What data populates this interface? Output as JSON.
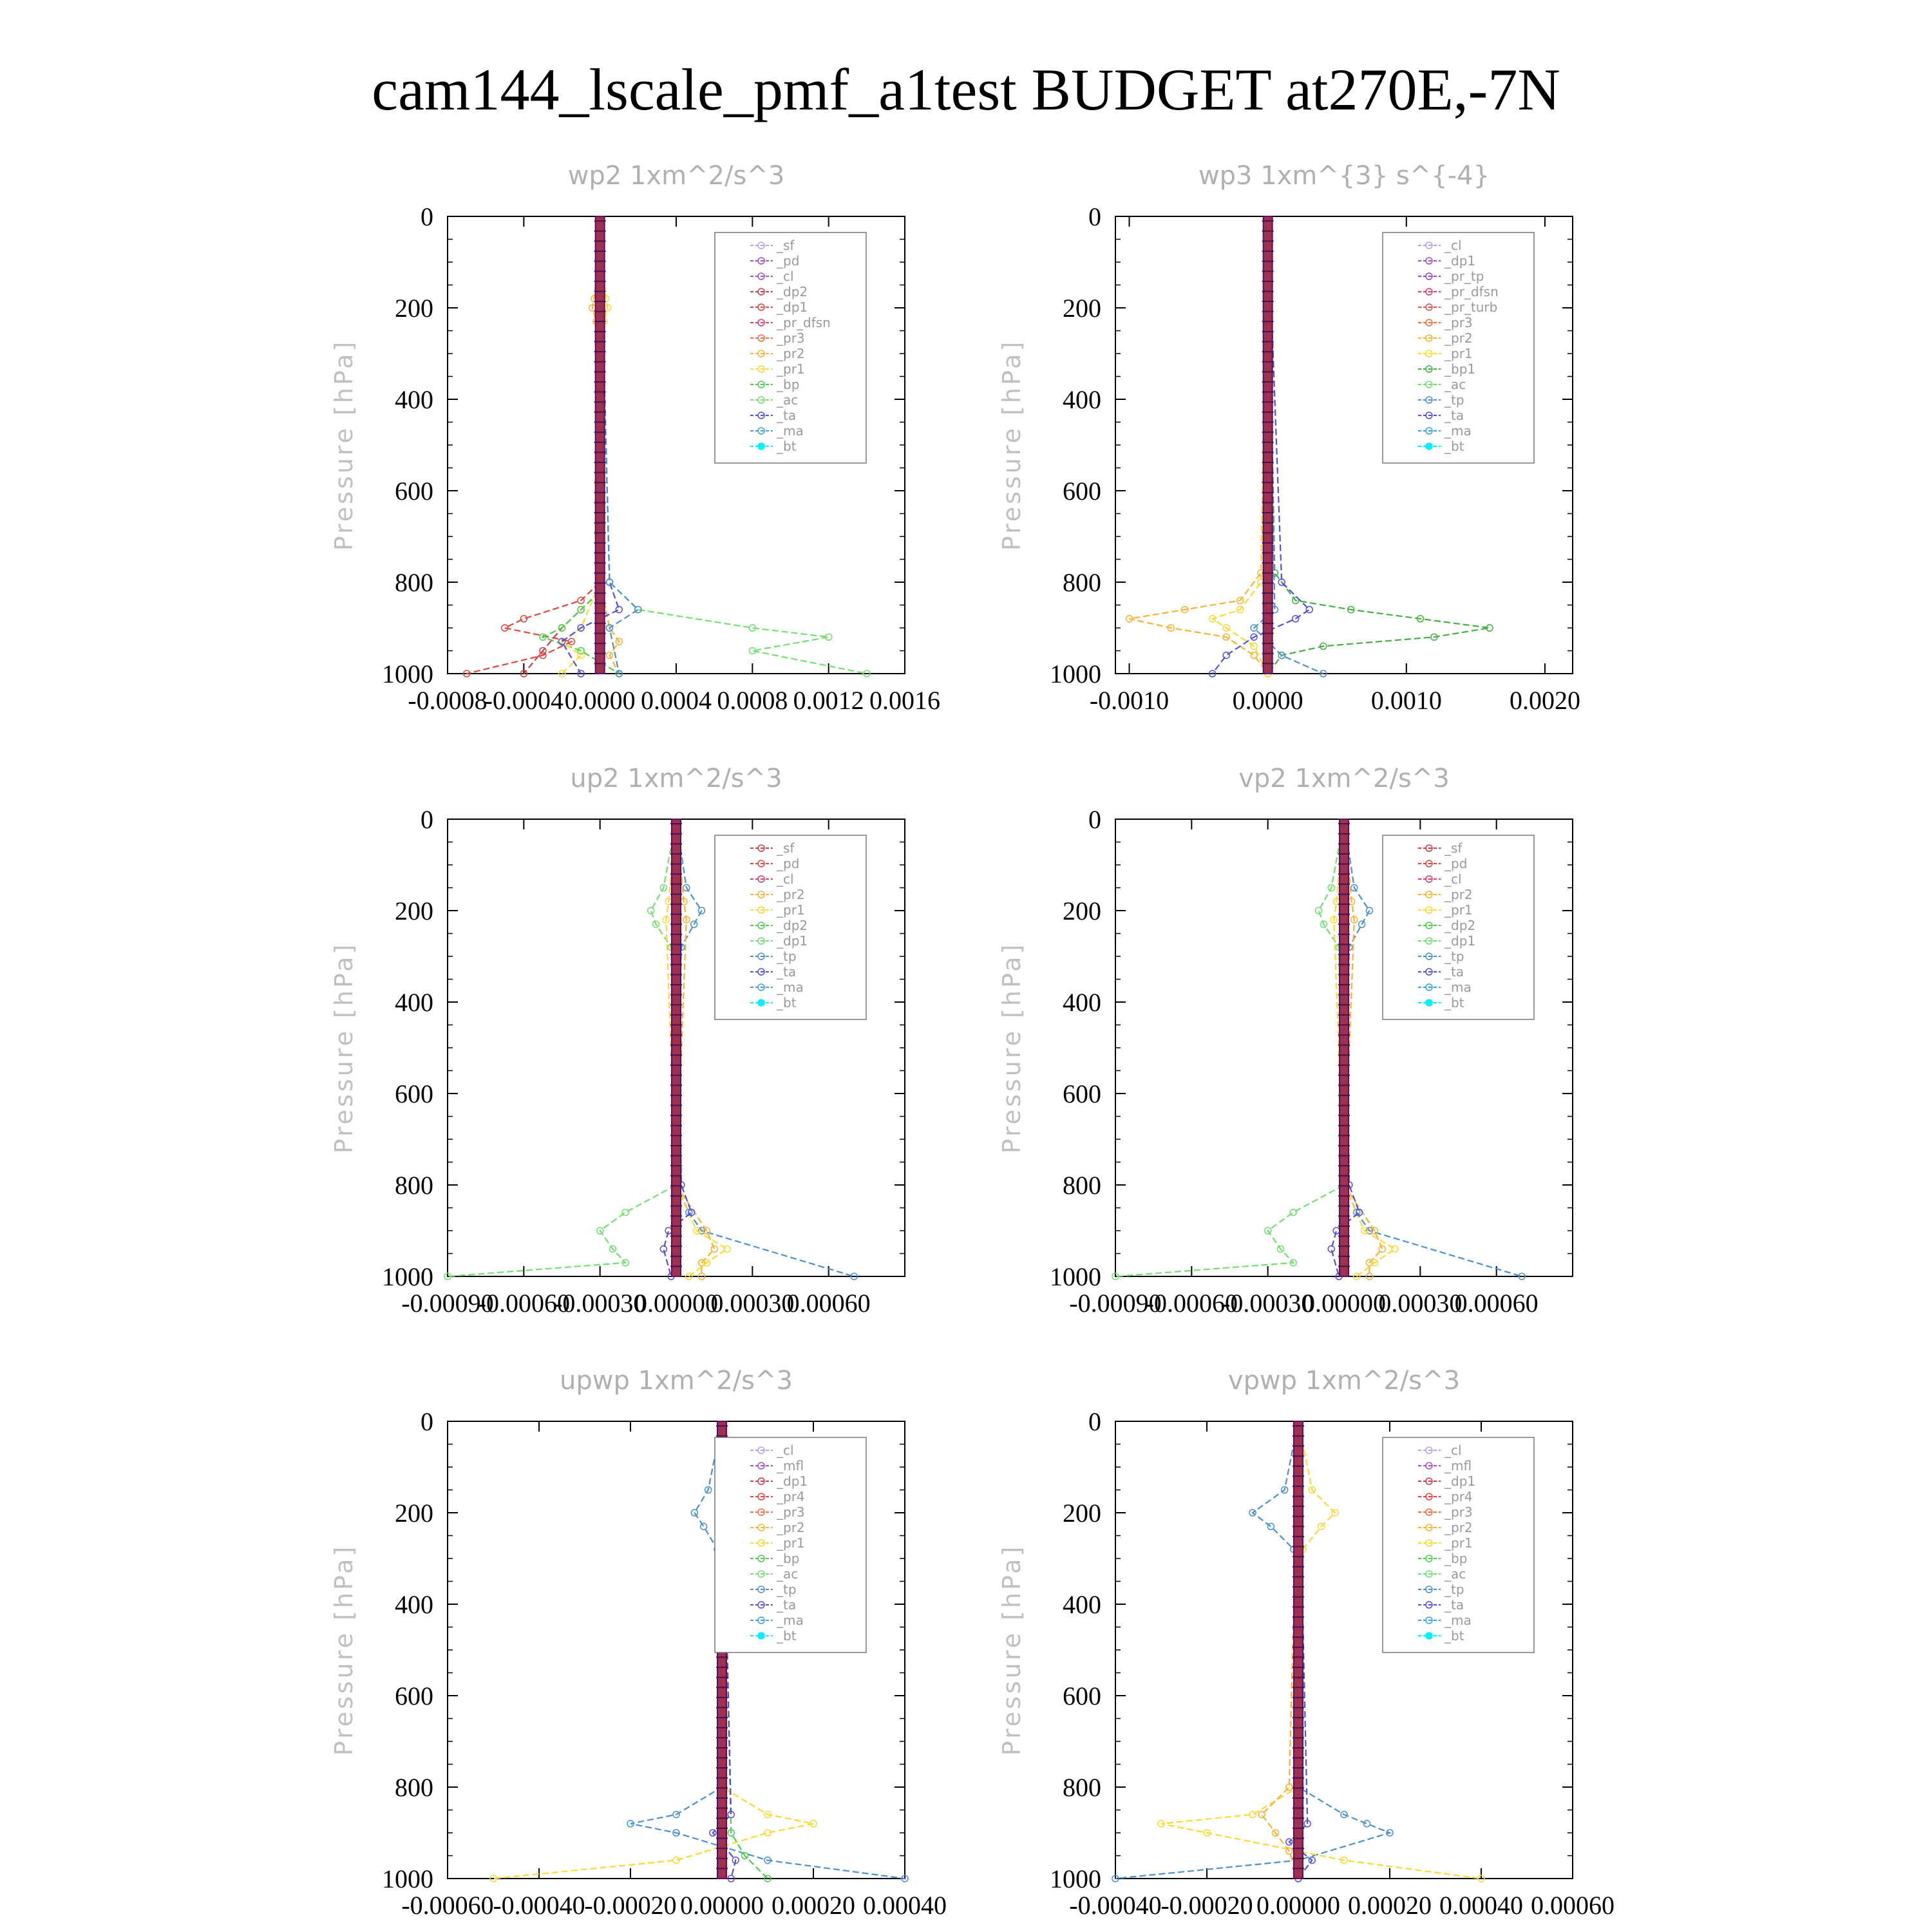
{
  "page": {
    "title": "cam144_lscale_pmf_a1test  BUDGET at270E,-7N"
  },
  "colors": {
    "sf": "#b9a0e6",
    "pd": "#9a4fc2",
    "cl": "#b04ad0",
    "mfl": "#b04ad0",
    "dp2": "#d43a4a",
    "dp1": "#e0453a",
    "pr_tp": "#8a4ad0",
    "pr_dfsn": "#e03a6a",
    "pr_turb": "#e05050",
    "pr_dfsn_r": "#ff5050",
    "pr4": "#ff3a3a",
    "pr3": "#ff6a3a",
    "pr2": "#ffb030",
    "pr1": "#ffd830",
    "bp": "#4ad04a",
    "bp1": "#40b040",
    "ac": "#70e070",
    "tp": "#4a90d0",
    "ta": "#5050e0",
    "ma": "#3aa0e0",
    "bt": "#00f0ff",
    "bar": "#b0204a",
    "bar_edge": "#5a1060",
    "bar_fill": "#a03050"
  },
  "chart_data": [
    {
      "type": "line",
      "title": "wp2   1xm^2/s^3",
      "ylabel": "Pressure [hPa]",
      "ylim": [
        1000,
        0
      ],
      "xlim": [
        -0.0008,
        0.0016
      ],
      "xtick_labels": [
        "-0.0008",
        "-0.0004",
        "0.0000",
        "0.0004",
        "0.0008",
        "0.0012",
        "0.0016"
      ],
      "xticks": [
        -0.0008,
        -0.0004,
        0,
        0.0004,
        0.0008,
        0.0012,
        0.0016
      ],
      "ytick_labels": [
        "0",
        "200",
        "400",
        "600",
        "800",
        "1000"
      ],
      "legend": [
        "_sf",
        "_pd",
        "_cl",
        "_dp2",
        "_dp1",
        "_pr_dfsn",
        "_pr3",
        "_pr2",
        "_pr1",
        "_bp",
        "_ac",
        "_ta",
        "_ma",
        "_bt"
      ],
      "legend_colors": [
        "sf",
        "pd",
        "cl",
        "dp2",
        "dp1",
        "pr_dfsn",
        "pr3",
        "pr2",
        "pr1",
        "bp",
        "ac",
        "ta",
        "ma",
        "bt"
      ],
      "legend_position": "top-right",
      "series": [
        {
          "name": "_dp1",
          "color": "dp1",
          "p": [
            0,
            800,
            840,
            880,
            900,
            930,
            960,
            1000
          ],
          "x": [
            0,
            0,
            -0.0001,
            -0.0004,
            -0.0005,
            -0.00015,
            -0.0003,
            -0.0007
          ]
        },
        {
          "name": "_dp2",
          "color": "dp2",
          "p": [
            0,
            820,
            860,
            900,
            950,
            1000
          ],
          "x": [
            0,
            0,
            -0.0001,
            -0.0002,
            -0.0003,
            -0.0004
          ]
        },
        {
          "name": "_bp",
          "color": "bp",
          "p": [
            0,
            820,
            860,
            900,
            920,
            950,
            1000
          ],
          "x": [
            0,
            0,
            -0.0001,
            -0.0002,
            -0.0003,
            -0.0001,
            0.0001
          ]
        },
        {
          "name": "_ac",
          "color": "ac",
          "p": [
            0,
            800,
            860,
            900,
            920,
            950,
            1000
          ],
          "x": [
            0,
            5e-05,
            0.0002,
            0.0008,
            0.0012,
            0.0008,
            0.0014
          ]
        },
        {
          "name": "_pr2",
          "color": "pr2",
          "p": [
            0,
            180,
            200,
            230,
            800,
            900,
            930,
            960,
            1000
          ],
          "x": [
            0,
            -3e-05,
            -4e-05,
            -2e-05,
            0,
            5e-05,
            0.0001,
            5e-05,
            0.0001
          ]
        },
        {
          "name": "_pr1",
          "color": "pr1",
          "p": [
            0,
            180,
            200,
            230,
            800,
            900,
            930,
            960,
            1000
          ],
          "x": [
            0,
            3e-05,
            4e-05,
            2e-05,
            0,
            -0.0001,
            -0.0002,
            -0.0001,
            -0.0002
          ]
        },
        {
          "name": "_ta",
          "color": "ta",
          "p": [
            0,
            800,
            860,
            900,
            930,
            1000
          ],
          "x": [
            0,
            5e-05,
            0.0001,
            -0.0001,
            -0.0002,
            -0.0001
          ]
        },
        {
          "name": "_tp",
          "color": "tp",
          "p": [
            0,
            800,
            860,
            900,
            1000
          ],
          "x": [
            0,
            5e-05,
            0.0002,
            5e-05,
            0.0001
          ]
        }
      ]
    },
    {
      "type": "line",
      "title": "wp3   1xm^{3} s^{-4}",
      "ylabel": "Pressure [hPa]",
      "ylim": [
        1000,
        0
      ],
      "xlim": [
        -0.0011,
        0.0022
      ],
      "xtick_labels": [
        "-0.0010",
        "0.0000",
        "0.0010",
        "0.0020"
      ],
      "xticks": [
        -0.001,
        0,
        0.001,
        0.002
      ],
      "ytick_labels": [
        "0",
        "200",
        "400",
        "600",
        "800",
        "1000"
      ],
      "legend": [
        "_cl",
        "_dp1",
        "_pr_tp",
        "_pr_dfsn",
        "_pr_turb",
        "_pr3",
        "_pr2",
        "_pr1",
        "_bp1",
        "_ac",
        "_tp",
        "_ta",
        "_ma",
        "_bt"
      ],
      "legend_colors": [
        "sf",
        "pd",
        "pr_tp",
        "pr_dfsn",
        "pr_turb",
        "pr3",
        "pr2",
        "pr1",
        "bp1",
        "ac",
        "tp",
        "ta",
        "ma",
        "bt"
      ],
      "legend_position": "top-right",
      "series": [
        {
          "name": "_bp1",
          "color": "bp1",
          "p": [
            0,
            780,
            840,
            860,
            880,
            900,
            920,
            940,
            960,
            1000
          ],
          "x": [
            0,
            5e-05,
            0.0002,
            0.0006,
            0.0011,
            0.0016,
            0.0012,
            0.0004,
            0.0001,
            0
          ]
        },
        {
          "name": "_pr2",
          "color": "pr2",
          "p": [
            0,
            780,
            840,
            860,
            880,
            900,
            920,
            960,
            1000
          ],
          "x": [
            0,
            -5e-05,
            -0.0002,
            -0.0006,
            -0.001,
            -0.0007,
            -0.0003,
            -0.0001,
            0
          ]
        },
        {
          "name": "_pr1",
          "color": "pr1",
          "p": [
            0,
            800,
            860,
            880,
            900,
            940,
            1000
          ],
          "x": [
            0,
            -5e-05,
            -0.0002,
            -0.0004,
            -0.0003,
            -0.0001,
            0
          ]
        },
        {
          "name": "_ta",
          "color": "ta",
          "p": [
            0,
            800,
            860,
            880,
            920,
            960,
            1000
          ],
          "x": [
            0,
            0.0001,
            0.0003,
            0.0002,
            -0.0001,
            -0.0003,
            -0.0004
          ]
        },
        {
          "name": "_tp",
          "color": "tp",
          "p": [
            0,
            860,
            900,
            960,
            1000
          ],
          "x": [
            0,
            5e-05,
            -0.0001,
            0.0001,
            0.0004
          ]
        }
      ]
    },
    {
      "type": "line",
      "title": "up2   1xm^2/s^3",
      "ylabel": "Pressure [hPa]",
      "ylim": [
        1000,
        0
      ],
      "xlim": [
        -0.0009,
        0.0009
      ],
      "xtick_labels": [
        "-0.00090",
        "-0.00060",
        "-0.00030",
        "0.00000",
        "0.00030",
        "0.00060"
      ],
      "xticks": [
        -0.0009,
        -0.0006,
        -0.0003,
        0,
        0.0003,
        0.0006
      ],
      "ytick_labels": [
        "0",
        "200",
        "400",
        "600",
        "800",
        "1000"
      ],
      "legend": [
        "_sf",
        "_pd",
        "_cl",
        "_pr2",
        "_pr1",
        "_dp2",
        "_dp1",
        "_tp",
        "_ta",
        "_ma",
        "_bt"
      ],
      "legend_colors": [
        "dp2",
        "dp1",
        "pr_dfsn",
        "pr2",
        "pr1",
        "bp",
        "ac",
        "tp",
        "ta",
        "ma",
        "bt"
      ],
      "legend_position": "top-right",
      "series": [
        {
          "name": "_dp1",
          "color": "ac",
          "p": [
            0,
            150,
            200,
            230,
            280,
            800,
            860,
            900,
            940,
            970,
            1000
          ],
          "x": [
            0,
            -5e-05,
            -0.0001,
            -8e-05,
            -2e-05,
            0,
            -0.0002,
            -0.0003,
            -0.00025,
            -0.0002,
            -0.0009
          ]
        },
        {
          "name": "_tp",
          "color": "tp",
          "p": [
            0,
            150,
            200,
            230,
            280,
            800,
            860,
            900,
            1000
          ],
          "x": [
            0,
            4e-05,
            0.0001,
            7e-05,
            2e-05,
            0,
            5e-05,
            0.0001,
            0.0007
          ]
        },
        {
          "name": "_pr2",
          "color": "pr2",
          "p": [
            0,
            180,
            220,
            800,
            900,
            940,
            970,
            1000
          ],
          "x": [
            0,
            3e-05,
            4e-05,
            0,
            0.00012,
            0.00015,
            0.0001,
            0.0001
          ]
        },
        {
          "name": "_pr1",
          "color": "pr1",
          "p": [
            0,
            180,
            220,
            800,
            900,
            940,
            970,
            1000
          ],
          "x": [
            0,
            -3e-05,
            -4e-05,
            0,
            8e-05,
            0.0002,
            0.00012,
            5e-05
          ]
        },
        {
          "name": "_ta",
          "color": "ta",
          "p": [
            0,
            800,
            860,
            900,
            940,
            1000
          ],
          "x": [
            0,
            2e-05,
            6e-05,
            -3e-05,
            -5e-05,
            -2e-05
          ]
        }
      ]
    },
    {
      "type": "line",
      "title": "vp2   1xm^2/s^3",
      "ylabel": "Pressure [hPa]",
      "ylim": [
        1000,
        0
      ],
      "xlim": [
        -0.0009,
        0.0009
      ],
      "xtick_labels": [
        "-0.00090",
        "-0.00060",
        "-0.00030",
        "0.00000",
        "0.00030",
        "0.00060"
      ],
      "xticks": [
        -0.0009,
        -0.0006,
        -0.0003,
        0,
        0.0003,
        0.0006
      ],
      "ytick_labels": [
        "0",
        "200",
        "400",
        "600",
        "800",
        "1000"
      ],
      "legend": [
        "_sf",
        "_pd",
        "_cl",
        "_pr2",
        "_pr1",
        "_dp2",
        "_dp1",
        "_tp",
        "_ta",
        "_ma",
        "_bt"
      ],
      "legend_colors": [
        "dp2",
        "dp1",
        "pr_dfsn",
        "pr2",
        "pr1",
        "bp",
        "ac",
        "tp",
        "ta",
        "ma",
        "bt"
      ],
      "legend_position": "top-right",
      "series": [
        {
          "name": "_dp1",
          "color": "ac",
          "p": [
            0,
            150,
            200,
            230,
            280,
            800,
            860,
            900,
            940,
            970,
            1000
          ],
          "x": [
            0,
            -5e-05,
            -0.0001,
            -8e-05,
            -2e-05,
            0,
            -0.0002,
            -0.0003,
            -0.00025,
            -0.0002,
            -0.0009
          ]
        },
        {
          "name": "_tp",
          "color": "tp",
          "p": [
            0,
            150,
            200,
            230,
            280,
            800,
            860,
            900,
            1000
          ],
          "x": [
            0,
            4e-05,
            0.0001,
            7e-05,
            2e-05,
            0,
            5e-05,
            0.0001,
            0.0007
          ]
        },
        {
          "name": "_pr2",
          "color": "pr2",
          "p": [
            0,
            180,
            220,
            800,
            900,
            940,
            970,
            1000
          ],
          "x": [
            0,
            3e-05,
            4e-05,
            0,
            0.00012,
            0.00015,
            0.0001,
            0.0001
          ]
        },
        {
          "name": "_pr1",
          "color": "pr1",
          "p": [
            0,
            180,
            220,
            800,
            900,
            940,
            970,
            1000
          ],
          "x": [
            0,
            -3e-05,
            -4e-05,
            0,
            8e-05,
            0.0002,
            0.00012,
            5e-05
          ]
        },
        {
          "name": "_ta",
          "color": "ta",
          "p": [
            0,
            800,
            860,
            900,
            940,
            1000
          ],
          "x": [
            0,
            2e-05,
            6e-05,
            -3e-05,
            -5e-05,
            -2e-05
          ]
        }
      ]
    },
    {
      "type": "line",
      "title": "upwp   1xm^2/s^3",
      "ylabel": "Pressure [hPa]",
      "ylim": [
        1000,
        0
      ],
      "xlim": [
        -0.0006,
        0.0004
      ],
      "xtick_labels": [
        "-0.00060",
        "-0.00040",
        "-0.00020",
        "0.00000",
        "0.00020",
        "0.00040"
      ],
      "xticks": [
        -0.0006,
        -0.0004,
        -0.0002,
        0,
        0.0002,
        0.0004
      ],
      "ytick_labels": [
        "0",
        "200",
        "400",
        "600",
        "800",
        "1000"
      ],
      "legend": [
        "_cl",
        "_mfl",
        "_dp1",
        "_pr4",
        "_pr3",
        "_pr2",
        "_pr1",
        "_bp",
        "_ac",
        "_tp",
        "_ta",
        "_ma",
        "_bt"
      ],
      "legend_colors": [
        "sf",
        "mfl",
        "dp2",
        "pr4",
        "pr3",
        "pr2",
        "pr1",
        "bp",
        "ac",
        "tp",
        "ta",
        "ma",
        "bt"
      ],
      "legend_position": "top-right",
      "series": [
        {
          "name": "_tp",
          "color": "tp",
          "p": [
            0,
            150,
            200,
            230,
            280,
            800,
            860,
            880,
            900,
            960,
            1000
          ],
          "x": [
            0,
            -3e-05,
            -6e-05,
            -4e-05,
            -1e-05,
            0,
            -0.0001,
            -0.0002,
            -0.0001,
            0.0001,
            0.0004
          ]
        },
        {
          "name": "_pr1",
          "color": "pr1",
          "p": [
            0,
            150,
            200,
            230,
            280,
            800,
            860,
            880,
            900,
            960,
            1000
          ],
          "x": [
            0,
            3e-05,
            5e-05,
            4e-05,
            1e-05,
            0,
            0.0001,
            0.0002,
            0.0001,
            -0.0001,
            -0.0005
          ]
        },
        {
          "name": "_bp",
          "color": "bp",
          "p": [
            0,
            900,
            950,
            1000
          ],
          "x": [
            0,
            2e-05,
            5e-05,
            0.0001
          ]
        },
        {
          "name": "_ta",
          "color": "ta",
          "p": [
            0,
            860,
            900,
            960,
            1000
          ],
          "x": [
            0,
            2e-05,
            -2e-05,
            3e-05,
            2e-05
          ]
        }
      ]
    },
    {
      "type": "line",
      "title": "vpwp   1xm^2/s^3",
      "ylabel": "Pressure [hPa]",
      "ylim": [
        1000,
        0
      ],
      "xlim": [
        -0.0004,
        0.0006
      ],
      "xtick_labels": [
        "-0.00040",
        "-0.00020",
        "0.00000",
        "0.00020",
        "0.00040",
        "0.00060"
      ],
      "xticks": [
        -0.0004,
        -0.0002,
        0,
        0.0002,
        0.0004,
        0.0006
      ],
      "ytick_labels": [
        "0",
        "200",
        "400",
        "600",
        "800",
        "1000"
      ],
      "legend": [
        "_cl",
        "_mfl",
        "_dp1",
        "_pr4",
        "_pr3",
        "_pr2",
        "_pr1",
        "_bp",
        "_ac",
        "_tp",
        "_ta",
        "_ma",
        "_bt"
      ],
      "legend_colors": [
        "sf",
        "mfl",
        "dp2",
        "pr4",
        "pr3",
        "pr2",
        "pr1",
        "bp",
        "ac",
        "tp",
        "ta",
        "ma",
        "bt"
      ],
      "legend_position": "top-right",
      "series": [
        {
          "name": "_tp",
          "color": "tp",
          "p": [
            0,
            150,
            200,
            230,
            280,
            800,
            860,
            880,
            900,
            960,
            1000
          ],
          "x": [
            0,
            -3e-05,
            -0.0001,
            -6e-05,
            -1e-05,
            0,
            0.0001,
            0.00015,
            0.0002,
            0,
            -0.0004
          ]
        },
        {
          "name": "_pr1",
          "color": "pr1",
          "p": [
            0,
            150,
            200,
            230,
            280,
            800,
            860,
            880,
            900,
            960,
            1000
          ],
          "x": [
            0,
            3e-05,
            8e-05,
            5e-05,
            1e-05,
            0,
            -0.0001,
            -0.0003,
            -0.0002,
            0.0001,
            0.0004
          ]
        },
        {
          "name": "_pr2",
          "color": "pr2",
          "p": [
            0,
            800,
            860,
            900,
            940,
            1000
          ],
          "x": [
            0,
            -2e-05,
            -8e-05,
            -5e-05,
            -2e-05,
            0
          ]
        },
        {
          "name": "_ta",
          "color": "ta",
          "p": [
            0,
            880,
            920,
            960,
            1000
          ],
          "x": [
            0,
            2e-05,
            -2e-05,
            3e-05,
            0
          ]
        }
      ]
    }
  ]
}
